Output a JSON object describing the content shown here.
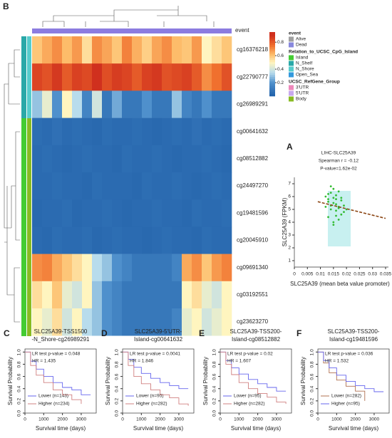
{
  "chart_data": [
    {
      "type": "heatmap",
      "panel": "B",
      "col_label": "event",
      "rows": [
        "cg16376218",
        "cg22790777",
        "cg26989291",
        "cg00641632",
        "cg08512882",
        "cg24497270",
        "cg19481596",
        "cg20045910",
        "cg09691340",
        "cg03192551",
        "cg23623270"
      ],
      "values": [
        [
          0.6,
          0.65,
          0.7,
          0.62,
          0.68,
          0.55,
          0.7,
          0.66,
          0.6,
          0.72,
          0.64,
          0.58,
          0.66,
          0.7,
          0.62,
          0.6,
          0.68,
          0.5,
          0.55,
          0.6
        ],
        [
          0.85,
          0.82,
          0.88,
          0.8,
          0.86,
          0.84,
          0.9,
          0.83,
          0.87,
          0.85,
          0.8,
          0.86,
          0.88,
          0.82,
          0.84,
          0.86,
          0.8,
          0.7,
          0.75,
          0.82
        ],
        [
          0.3,
          0.45,
          0.2,
          0.5,
          0.35,
          0.15,
          0.4,
          0.1,
          0.25,
          0.1,
          0.1,
          0.2,
          0.1,
          0.1,
          0.3,
          0.15,
          0.1,
          0.2,
          0.1,
          0.1
        ],
        [
          0.06,
          0.05,
          0.07,
          0.05,
          0.06,
          0.05,
          0.04,
          0.06,
          0.05,
          0.05,
          0.06,
          0.05,
          0.04,
          0.05,
          0.06,
          0.05,
          0.07,
          0.05,
          0.06,
          0.05
        ],
        [
          0.05,
          0.06,
          0.05,
          0.04,
          0.05,
          0.06,
          0.05,
          0.05,
          0.04,
          0.06,
          0.05,
          0.05,
          0.06,
          0.05,
          0.04,
          0.05,
          0.05,
          0.06,
          0.05,
          0.04
        ],
        [
          0.05,
          0.05,
          0.06,
          0.05,
          0.05,
          0.04,
          0.06,
          0.05,
          0.05,
          0.05,
          0.04,
          0.06,
          0.05,
          0.05,
          0.06,
          0.05,
          0.04,
          0.05,
          0.06,
          0.05
        ],
        [
          0.04,
          0.05,
          0.05,
          0.06,
          0.04,
          0.05,
          0.05,
          0.06,
          0.05,
          0.04,
          0.05,
          0.05,
          0.06,
          0.05,
          0.05,
          0.04,
          0.06,
          0.05,
          0.05,
          0.06
        ],
        [
          0.05,
          0.04,
          0.06,
          0.05,
          0.05,
          0.06,
          0.04,
          0.05,
          0.06,
          0.05,
          0.05,
          0.04,
          0.05,
          0.06,
          0.05,
          0.05,
          0.04,
          0.06,
          0.05,
          0.05
        ],
        [
          0.7,
          0.72,
          0.65,
          0.6,
          0.55,
          0.5,
          0.35,
          0.3,
          0.2,
          0.15,
          0.1,
          0.1,
          0.1,
          0.1,
          0.15,
          0.65,
          0.7,
          0.6,
          0.68,
          0.72
        ],
        [
          0.55,
          0.5,
          0.6,
          0.45,
          0.4,
          0.5,
          0.3,
          0.2,
          0.15,
          0.1,
          0.1,
          0.1,
          0.1,
          0.1,
          0.1,
          0.5,
          0.55,
          0.45,
          0.4,
          0.5
        ],
        [
          0.5,
          0.45,
          0.55,
          0.4,
          0.5,
          0.35,
          0.3,
          0.2,
          0.15,
          0.1,
          0.1,
          0.1,
          0.1,
          0.1,
          0.15,
          0.45,
          0.5,
          0.4,
          0.45,
          0.5
        ]
      ],
      "zlim": [
        0,
        0.95
      ],
      "zticks": [
        0.2,
        0.4,
        0.6,
        0.8
      ],
      "colormap": [
        [
          0,
          "#1f5fa8"
        ],
        [
          0.2,
          "#4f90cc"
        ],
        [
          0.35,
          "#b8dcec"
        ],
        [
          0.5,
          "#fff5bf"
        ],
        [
          0.62,
          "#fdbc6a"
        ],
        [
          0.75,
          "#f0702e"
        ],
        [
          0.9,
          "#d0301e"
        ]
      ],
      "legend": [
        {
          "title": "event",
          "items": [
            {
              "label": "Alive",
              "color": "#a0a0a0"
            },
            {
              "label": "Dead",
              "color": "#8888dd"
            }
          ]
        },
        {
          "title": "Relation_to_UCSC_CpG_Island",
          "items": [
            {
              "label": "Island",
              "color": "#44cc33"
            },
            {
              "label": "N_Shelf",
              "color": "#2aa8a8"
            },
            {
              "label": "N_Shore",
              "color": "#55cccc"
            },
            {
              "label": "Open_Sea",
              "color": "#3399dd"
            }
          ]
        },
        {
          "title": "UCSC_RefGene_Group",
          "items": [
            {
              "label": "3'UTR",
              "color": "#ee88bb"
            },
            {
              "label": "5'UTR",
              "color": "#c8a8ee"
            },
            {
              "label": "Body",
              "color": "#88bb22"
            }
          ]
        }
      ]
    },
    {
      "type": "scatter",
      "panel": "A",
      "title": [
        "LIHC-SLC25A39",
        "Spearman r = -0.12",
        "P-value=1.62e-02"
      ],
      "x": [
        0.012,
        0.013,
        0.014,
        0.015,
        0.016,
        0.017,
        0.018,
        0.019,
        0.013,
        0.014,
        0.015,
        0.016,
        0.017,
        0.018,
        0.012,
        0.014,
        0.015,
        0.016,
        0.017,
        0.019,
        0.02,
        0.013,
        0.015,
        0.016,
        0.014,
        0.018,
        0.015,
        0.016,
        0.017,
        0.013
      ],
      "values": [
        5.2,
        5.8,
        6.3,
        5.5,
        4.9,
        5.1,
        4.6,
        5.3,
        4.4,
        6.8,
        5.9,
        6.1,
        4.2,
        5.7,
        6.0,
        5.0,
        3.8,
        5.4,
        6.4,
        4.8,
        5.0,
        5.6,
        6.6,
        4.5,
        5.3,
        5.9,
        4.0,
        5.8,
        5.2,
        6.2
      ],
      "color": "#33bb33",
      "trend": {
        "x": [
          0.009,
          0.035
        ],
        "values": [
          5.6,
          4.3
        ],
        "color": "#8b4513"
      },
      "xlim": [
        0,
        0.035
      ],
      "xticks": [
        0,
        0.005,
        0.01,
        0.015,
        0.02,
        0.025,
        0.03,
        0.035
      ],
      "ylim": [
        0.5,
        7.5
      ],
      "yticks": [
        1,
        2,
        3,
        4,
        5,
        6,
        7
      ],
      "xlabel": "SLC25A39 (mean beta value promoter)",
      "ylabel": "SLC25A39 (FPKM)"
    },
    {
      "type": "step",
      "panel": "C",
      "title": [
        "SLC25A39-TSS1500",
        "-N_Shore-cg26989291"
      ],
      "annotations": [
        "LR test p-value = 0.048",
        "HR = 1.435"
      ],
      "series": [
        {
          "name": "Lower (n=143)",
          "color": "#6666ee",
          "x": [
            0,
            300,
            600,
            1000,
            1500,
            2000,
            2500,
            3000,
            3500
          ],
          "values": [
            1,
            0.85,
            0.72,
            0.6,
            0.5,
            0.42,
            0.38,
            0.3,
            0.3
          ]
        },
        {
          "name": "Higher (n=234)",
          "color": "#d08080",
          "x": [
            0,
            300,
            600,
            1000,
            1500,
            2000,
            2500,
            3000
          ],
          "values": [
            1,
            0.78,
            0.62,
            0.5,
            0.38,
            0.3,
            0.22,
            0.15
          ]
        }
      ],
      "xlim": [
        0,
        3800
      ],
      "xticks": [
        0,
        1000,
        2000,
        3000
      ],
      "ylim": [
        0,
        1.05
      ],
      "yticks": [
        {
          "value": 0,
          "label": "0.0"
        },
        0.2,
        0.4,
        0.6,
        0.8,
        {
          "value": 1,
          "label": "1.0"
        }
      ],
      "xlabel": "Survival time (days)",
      "ylabel": "Survival Probability"
    },
    {
      "type": "step",
      "panel": "D",
      "title": [
        "SLC25A39-5'UTR-",
        "Island-cg00641632"
      ],
      "annotations": [
        "LR test p-value = 0.0041",
        "HR = 1.846"
      ],
      "series": [
        {
          "name": "Lower (n=95)",
          "color": "#6666ee",
          "x": [
            0,
            300,
            600,
            1000,
            1500,
            2000,
            2500,
            3000,
            3500
          ],
          "values": [
            1,
            0.88,
            0.75,
            0.65,
            0.57,
            0.5,
            0.45,
            0.4,
            0.4
          ]
        },
        {
          "name": "Higher (n=282)",
          "color": "#d08080",
          "x": [
            0,
            300,
            600,
            1000,
            1500,
            2000,
            2500,
            3000,
            3500
          ],
          "values": [
            1,
            0.78,
            0.6,
            0.48,
            0.38,
            0.3,
            0.25,
            0.15,
            0.12
          ]
        }
      ],
      "xlim": [
        0,
        3800
      ],
      "xticks": [
        0,
        1000,
        2000,
        3000
      ],
      "ylim": [
        0,
        1.05
      ],
      "yticks": [
        {
          "value": 0,
          "label": "0.0"
        },
        0.2,
        0.4,
        0.6,
        0.8,
        {
          "value": 1,
          "label": "1.0"
        }
      ],
      "xlabel": "Survival time (days)",
      "ylabel": "Survival Probability"
    },
    {
      "type": "step",
      "panel": "E",
      "title": [
        "SLC25A39-TSS200-",
        "Island-cg08512882"
      ],
      "annotations": [
        "LR test p-value = 0.02",
        "HR = 1.607"
      ],
      "series": [
        {
          "name": "Lower (n=95)",
          "color": "#6666ee",
          "x": [
            0,
            300,
            600,
            1000,
            1500,
            2000,
            2500,
            3000,
            3500
          ],
          "values": [
            1,
            0.86,
            0.74,
            0.64,
            0.55,
            0.48,
            0.42,
            0.36,
            0.36
          ]
        },
        {
          "name": "Higher (n=282)",
          "color": "#d08080",
          "x": [
            0,
            300,
            600,
            1000,
            1500,
            2000,
            2500,
            3000,
            3500
          ],
          "values": [
            1,
            0.8,
            0.63,
            0.5,
            0.4,
            0.32,
            0.26,
            0.18,
            0.15
          ]
        }
      ],
      "xlim": [
        0,
        3800
      ],
      "xticks": [
        0,
        1000,
        2000,
        3000
      ],
      "ylim": [
        0,
        1.05
      ],
      "yticks": [
        {
          "value": 0,
          "label": "0.0"
        },
        0.2,
        0.4,
        0.6,
        0.8,
        {
          "value": 1,
          "label": "1.0"
        }
      ],
      "xlabel": "Survival time (days)",
      "ylabel": "Survival Probability"
    },
    {
      "type": "step",
      "panel": "F",
      "title": [
        "SLC25A39-TSS200-",
        "Island-cg19481596"
      ],
      "annotations": [
        "LR test p-value = 0.036",
        "HR = 1.532"
      ],
      "series": [
        {
          "name": "Lower (n=282)",
          "color": "#b07050",
          "x": [
            0,
            300,
            600,
            1000,
            1500,
            2000,
            2500
          ],
          "values": [
            1,
            0.82,
            0.66,
            0.54,
            0.44,
            0.36,
            0.2
          ]
        },
        {
          "name": "Higher (n=95)",
          "color": "#6666ee",
          "x": [
            0,
            300,
            600,
            1000,
            1500,
            2000,
            2500,
            3000,
            3500
          ],
          "values": [
            1,
            0.86,
            0.74,
            0.62,
            0.52,
            0.45,
            0.4,
            0.35,
            0.35
          ]
        }
      ],
      "xlim": [
        0,
        3800
      ],
      "xticks": [
        0,
        1000,
        2000,
        3000
      ],
      "ylim": [
        0,
        1.05
      ],
      "yticks": [
        {
          "value": 0,
          "label": "0.0"
        },
        0.2,
        0.4,
        0.6,
        0.8,
        {
          "value": 1,
          "label": "1.0"
        }
      ],
      "xlabel": "Survival time (days)",
      "ylabel": "Survival Probability"
    }
  ]
}
